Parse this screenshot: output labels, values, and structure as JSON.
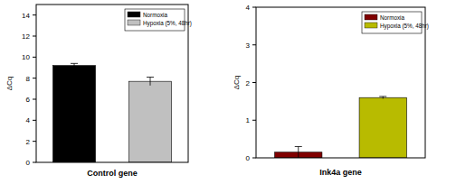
{
  "chart_data": [
    {
      "type": "bar",
      "x_label": "Control gene",
      "y_label": "ΔCq",
      "categories": [
        null
      ],
      "series": [
        {
          "name": "Normoxia",
          "color": "#000000",
          "values": [
            9.2
          ],
          "errors": [
            0.2
          ]
        },
        {
          "name": "Hypoxia (5%, 48hr)",
          "color": "#c0c0c0",
          "values": [
            7.7
          ],
          "errors": [
            0.4
          ]
        }
      ],
      "ylim": [
        0,
        15
      ],
      "yticks": [
        0,
        2,
        4,
        6,
        8,
        10,
        12,
        14
      ],
      "legend": "upper right"
    },
    {
      "type": "bar",
      "x_label": "Ink4a gene",
      "y_label": "ΔCq",
      "categories": [
        null
      ],
      "series": [
        {
          "name": "Normoxia",
          "color": "#800000",
          "values": [
            0.15
          ],
          "errors": [
            0.15
          ]
        },
        {
          "name": "Hypoxia (5%, 48hr)",
          "color": "#b8bb00",
          "values": [
            1.6
          ],
          "errors": [
            0.03
          ]
        }
      ],
      "ylim": [
        0,
        4
      ],
      "yticks": [
        0,
        1,
        2,
        3,
        4
      ],
      "legend": "upper right"
    }
  ]
}
